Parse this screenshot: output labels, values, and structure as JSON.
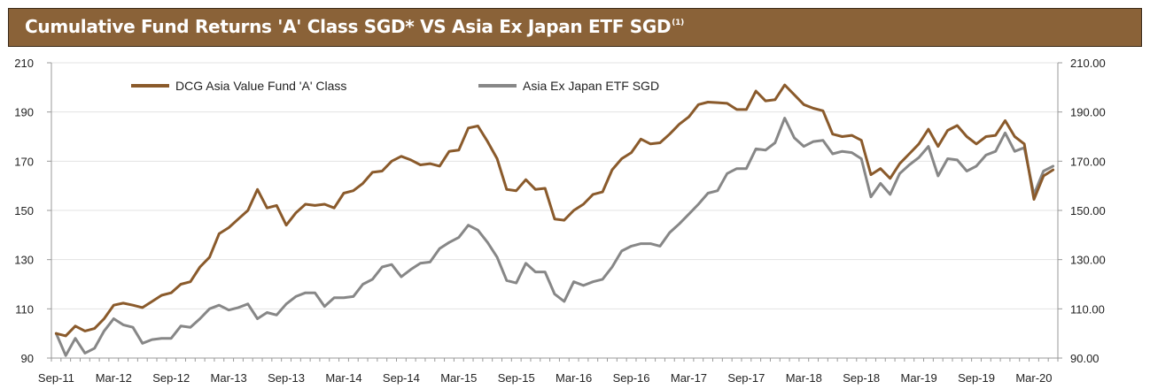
{
  "title": {
    "main": "Cumulative Fund Returns 'A' Class SGD* VS Asia Ex Japan ETF SGD",
    "superscript": "(1)",
    "background_color": "#8a6238",
    "text_color": "#ffffff"
  },
  "chart_data": {
    "type": "line",
    "x_start": "Sep-11",
    "x_end": "Jun-20",
    "x_tick_labels": [
      "Sep-11",
      "Mar-12",
      "Sep-12",
      "Mar-13",
      "Sep-13",
      "Mar-14",
      "Sep-14",
      "Mar-15",
      "Sep-15",
      "Mar-16",
      "Sep-16",
      "Mar-17",
      "Sep-17",
      "Mar-18",
      "Sep-18",
      "Mar-19",
      "Sep-19",
      "Mar-20"
    ],
    "left_ticks": [
      "90",
      "110",
      "130",
      "150",
      "170",
      "190",
      "210"
    ],
    "right_ticks": [
      "90.00",
      "110.00",
      "130.00",
      "150.00",
      "170.00",
      "190.00",
      "210.00"
    ],
    "ylim": [
      90,
      210
    ],
    "grid": true,
    "legend_position": "top-left",
    "series": [
      {
        "name": "DCG Asia Value Fund 'A' Class",
        "color": "#8a5a2b",
        "values": [
          100,
          99,
          103,
          101,
          102,
          106,
          111.5,
          112.3,
          111.5,
          110.5,
          113,
          115.5,
          116.5,
          120,
          121,
          127,
          131,
          140.5,
          143,
          146.5,
          150,
          158.5,
          151,
          152,
          144,
          149,
          152.5,
          152,
          152.5,
          151,
          157,
          158,
          161,
          165.5,
          166,
          170,
          172,
          170.5,
          168.5,
          169,
          168,
          174,
          174.5,
          183.5,
          184.3,
          178,
          171,
          158.5,
          158,
          162.5,
          158.5,
          159,
          146.5,
          146,
          150,
          152.5,
          156.5,
          157.5,
          166.5,
          171,
          173.5,
          179,
          177,
          177.5,
          181,
          185,
          188,
          193,
          194,
          193.8,
          193.5,
          191,
          191,
          198.5,
          194.5,
          195,
          201,
          197,
          193,
          191.5,
          190.5,
          181,
          180,
          180.5,
          178.5,
          164.5,
          167,
          163,
          169,
          173,
          177,
          183,
          176,
          182.5,
          184.5,
          180,
          177,
          180,
          180.5,
          186.5,
          180,
          177,
          154.5,
          164,
          166.5
        ]
      },
      {
        "name": "Asia Ex Japan ETF SGD",
        "color": "#878787",
        "values": [
          100,
          91,
          98,
          92,
          94,
          101,
          106,
          103.5,
          102.5,
          96,
          97.5,
          98,
          98,
          103,
          102.5,
          106,
          110,
          111.5,
          109.5,
          110.5,
          112,
          106,
          108.5,
          107.5,
          112,
          115,
          116.5,
          116.5,
          111,
          114.5,
          114.5,
          115,
          120,
          122,
          127,
          128,
          123,
          126,
          128.5,
          129,
          134.5,
          137,
          139,
          144,
          142,
          137,
          131,
          121.5,
          120.5,
          128.5,
          125,
          125,
          116,
          113,
          121,
          119.5,
          121,
          122,
          127,
          133.5,
          135.5,
          136.5,
          136.5,
          135.5,
          141,
          144.5,
          148.5,
          152.5,
          157,
          158,
          165,
          167,
          167,
          175,
          174.5,
          177.5,
          187.5,
          179.5,
          176,
          178,
          178.5,
          173,
          174,
          173.5,
          171,
          155.5,
          161,
          156.5,
          165,
          168.5,
          171.5,
          176,
          164,
          171,
          170.5,
          166,
          168,
          172.5,
          174,
          181.5,
          174,
          175.5,
          156.5,
          166,
          168
        ]
      }
    ]
  }
}
